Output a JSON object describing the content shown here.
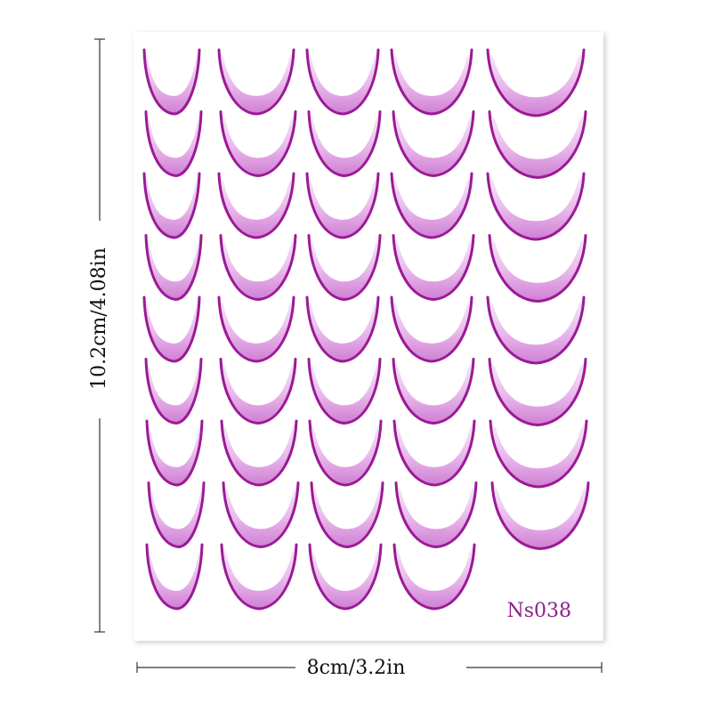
{
  "dimensions": {
    "width_label": "8cm/3.2in",
    "height_label": "10.2cm/4.08in"
  },
  "sheet": {
    "product_code": "Ns038",
    "sticker_grid": {
      "rows": 9,
      "columns": 5,
      "last_row_filled_columns": 4,
      "sticker_shape": "french-tip-crescent"
    }
  },
  "colors": {
    "sticker_edge": "#9b1a96",
    "sticker_fill": "#e8b6ea",
    "sticker_fill_light": "#f6e6f7",
    "product_code": "#8e1f86",
    "dimension_text": "#111111",
    "sheet_background": "#ffffff",
    "sheet_shadow": "#cfcfcf"
  }
}
